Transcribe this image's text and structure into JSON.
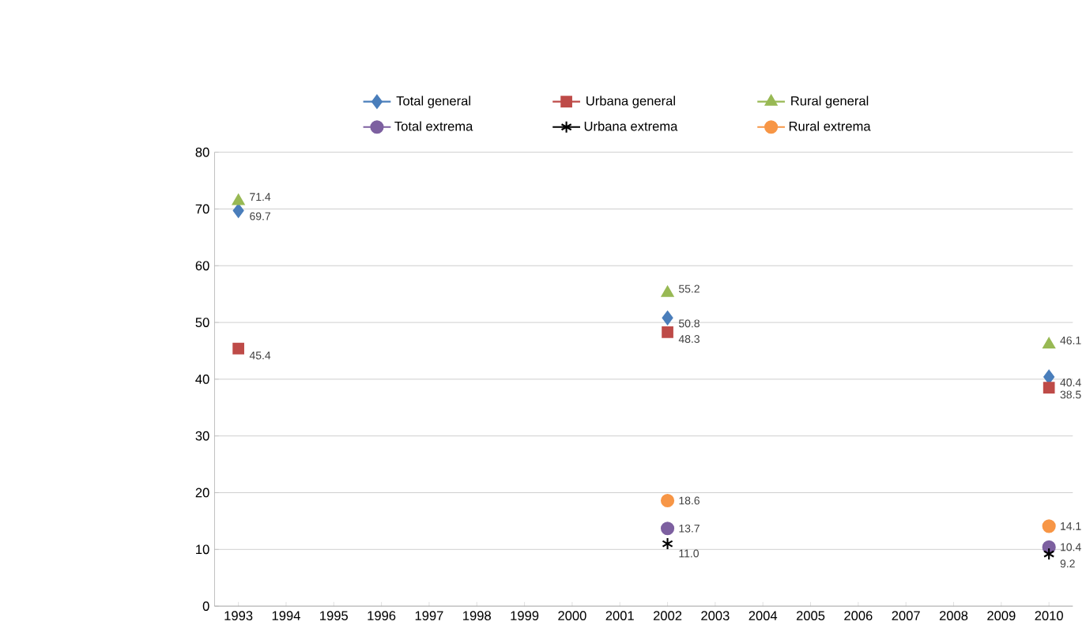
{
  "chart_data": {
    "type": "scatter",
    "categories": [
      "1993",
      "1994",
      "1995",
      "1996",
      "1997",
      "1998",
      "1999",
      "2000",
      "2001",
      "2002",
      "2003",
      "2004",
      "2005",
      "2006",
      "2007",
      "2008",
      "2009",
      "2010"
    ],
    "series": [
      {
        "name": "Total general",
        "color": "#4a7ebb",
        "marker": "diamond",
        "values": [
          69.7,
          null,
          null,
          null,
          null,
          null,
          null,
          null,
          null,
          50.8,
          null,
          null,
          null,
          null,
          null,
          null,
          null,
          40.4
        ],
        "value_labels": [
          "69.7",
          null,
          null,
          null,
          null,
          null,
          null,
          null,
          null,
          "50.8",
          null,
          null,
          null,
          null,
          null,
          null,
          null,
          "40.4"
        ]
      },
      {
        "name": "Urbana general",
        "color": "#be4b48",
        "marker": "square",
        "values": [
          45.4,
          null,
          null,
          null,
          null,
          null,
          null,
          null,
          null,
          48.3,
          null,
          null,
          null,
          null,
          null,
          null,
          null,
          38.5
        ],
        "value_labels": [
          "45.4",
          null,
          null,
          null,
          null,
          null,
          null,
          null,
          null,
          "48.3",
          null,
          null,
          null,
          null,
          null,
          null,
          null,
          "38.5"
        ]
      },
      {
        "name": "Rural general",
        "color": "#98b954",
        "marker": "triangle",
        "values": [
          71.4,
          null,
          null,
          null,
          null,
          null,
          null,
          null,
          null,
          55.2,
          null,
          null,
          null,
          null,
          null,
          null,
          null,
          46.1
        ],
        "value_labels": [
          "71.4",
          null,
          null,
          null,
          null,
          null,
          null,
          null,
          null,
          "55.2",
          null,
          null,
          null,
          null,
          null,
          null,
          null,
          "46.1"
        ]
      },
      {
        "name": "Total extrema",
        "color": "#7d60a0",
        "marker": "circle",
        "values": [
          null,
          null,
          null,
          null,
          null,
          null,
          null,
          null,
          null,
          13.7,
          null,
          null,
          null,
          null,
          null,
          null,
          null,
          10.4
        ],
        "value_labels": [
          null,
          null,
          null,
          null,
          null,
          null,
          null,
          null,
          null,
          "13.7",
          null,
          null,
          null,
          null,
          null,
          null,
          null,
          "10.4"
        ]
      },
      {
        "name": "Urbana extrema",
        "color": "#000000",
        "marker": "cross",
        "values": [
          null,
          null,
          null,
          null,
          null,
          null,
          null,
          null,
          null,
          11.0,
          null,
          null,
          null,
          null,
          null,
          null,
          null,
          9.2
        ],
        "value_labels": [
          null,
          null,
          null,
          null,
          null,
          null,
          null,
          null,
          null,
          "11.0",
          null,
          null,
          null,
          null,
          null,
          null,
          null,
          "9.2"
        ]
      },
      {
        "name": "Rural extrema",
        "color": "#f79646",
        "marker": "circle",
        "values": [
          null,
          null,
          null,
          null,
          null,
          null,
          null,
          null,
          null,
          18.6,
          null,
          null,
          null,
          null,
          null,
          null,
          null,
          14.1
        ],
        "value_labels": [
          null,
          null,
          null,
          null,
          null,
          null,
          null,
          null,
          null,
          "18.6",
          null,
          null,
          null,
          null,
          null,
          null,
          null,
          "14.1"
        ]
      }
    ],
    "ylim": [
      0,
      80
    ],
    "yticks": [
      0,
      10,
      20,
      30,
      40,
      50,
      60,
      70,
      80
    ],
    "grid": "y",
    "legend": "top"
  }
}
